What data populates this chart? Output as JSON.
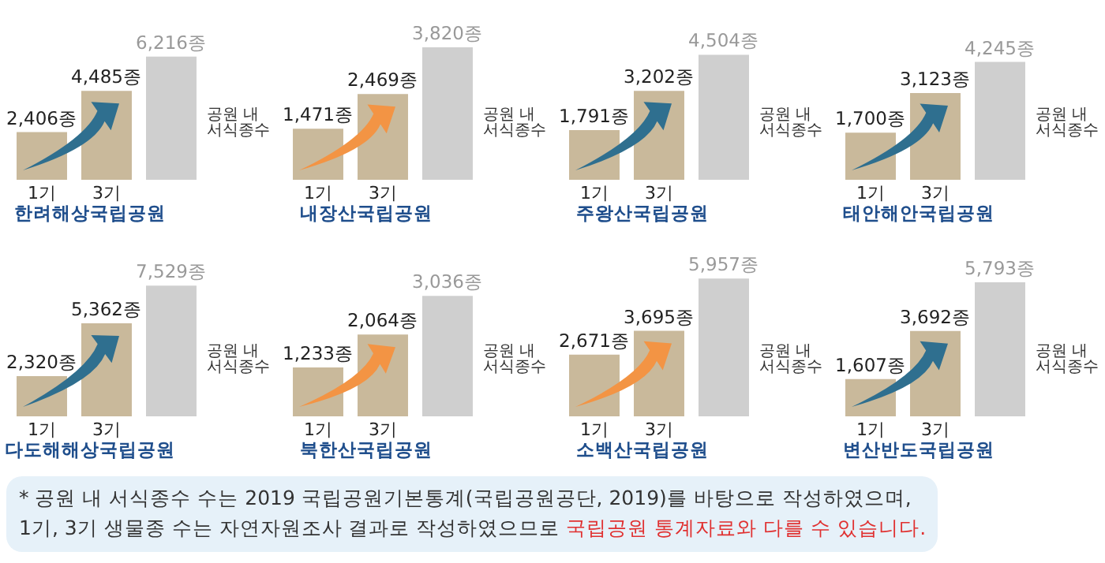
{
  "chart_data": [
    {
      "type": "bar",
      "title": "한려해상국립공원",
      "categories": [
        "1기",
        "3기",
        null
      ],
      "values": [
        2406,
        4485,
        6216
      ],
      "value_labels": [
        "2,406종",
        "4,485종",
        "6,216종"
      ],
      "colors": [
        "#c9b99b",
        "#c9b99b",
        "#cfcfcf"
      ],
      "annotations": [
        "공원 내 서식종수"
      ]
    },
    {
      "type": "bar",
      "title": "내장산국립공원",
      "categories": [
        "1기",
        "3기",
        null
      ],
      "values": [
        1471,
        2469,
        3820
      ],
      "value_labels": [
        "1,471종",
        "2,469종",
        "3,820종"
      ],
      "colors": [
        "#c9b99b",
        "#c9b99b",
        "#cfcfcf"
      ],
      "annotations": [
        "공원 내 서식종수"
      ]
    },
    {
      "type": "bar",
      "title": "주왕산국립공원",
      "categories": [
        "1기",
        "3기",
        null
      ],
      "values": [
        1791,
        3202,
        4504
      ],
      "value_labels": [
        "1,791종",
        "3,202종",
        "4,504종"
      ],
      "colors": [
        "#c9b99b",
        "#c9b99b",
        "#cfcfcf"
      ],
      "annotations": [
        "공원 내 서식종수"
      ]
    },
    {
      "type": "bar",
      "title": "태안해안국립공원",
      "categories": [
        "1기",
        "3기",
        null
      ],
      "values": [
        1700,
        3123,
        4245
      ],
      "value_labels": [
        "1,700종",
        "3,123종",
        "4,245종"
      ],
      "colors": [
        "#c9b99b",
        "#c9b99b",
        "#cfcfcf"
      ],
      "annotations": [
        "공원 내 서식종수"
      ]
    },
    {
      "type": "bar",
      "title": "다도해해상국립공원",
      "categories": [
        "1기",
        "3기",
        null
      ],
      "values": [
        2320,
        5362,
        7529
      ],
      "value_labels": [
        "2,320종",
        "5,362종",
        "7,529종"
      ],
      "colors": [
        "#c9b99b",
        "#c9b99b",
        "#cfcfcf"
      ],
      "annotations": [
        "공원 내 서식종수"
      ]
    },
    {
      "type": "bar",
      "title": "북한산국립공원",
      "categories": [
        "1기",
        "3기",
        null
      ],
      "values": [
        1233,
        2064,
        3036
      ],
      "value_labels": [
        "1,233종",
        "2,064종",
        "3,036종"
      ],
      "colors": [
        "#c9b99b",
        "#c9b99b",
        "#cfcfcf"
      ],
      "annotations": [
        "공원 내 서식종수"
      ]
    },
    {
      "type": "bar",
      "title": "소백산국립공원",
      "categories": [
        "1기",
        "3기",
        null
      ],
      "values": [
        2671,
        3695,
        5957
      ],
      "value_labels": [
        "2,671종",
        "3,695종",
        "5,957종"
      ],
      "colors": [
        "#c9b99b",
        "#c9b99b",
        "#cfcfcf"
      ],
      "annotations": [
        "공원 내 서식종수"
      ]
    },
    {
      "type": "bar",
      "title": "변산반도국립공원",
      "categories": [
        "1기",
        "3기",
        null
      ],
      "values": [
        1607,
        3692,
        5793
      ],
      "value_labels": [
        "1,607종",
        "3,692종",
        "5,793종"
      ],
      "colors": [
        "#c9b99b",
        "#c9b99b",
        "#cfcfcf"
      ],
      "annotations": [
        "공원 내 서식종수",
        "* 공원 내 서식종수 수는 2019 국립공원기본통계(국립공원공단, 2019)를 바탕으로 작성하였으며,",
        "1기, 3기 생물종 수는 자연자원조사 결과로 작성하였으므로",
        "국립공원 통계자료와 다를 수 있습니다."
      ]
    }
  ]
}
